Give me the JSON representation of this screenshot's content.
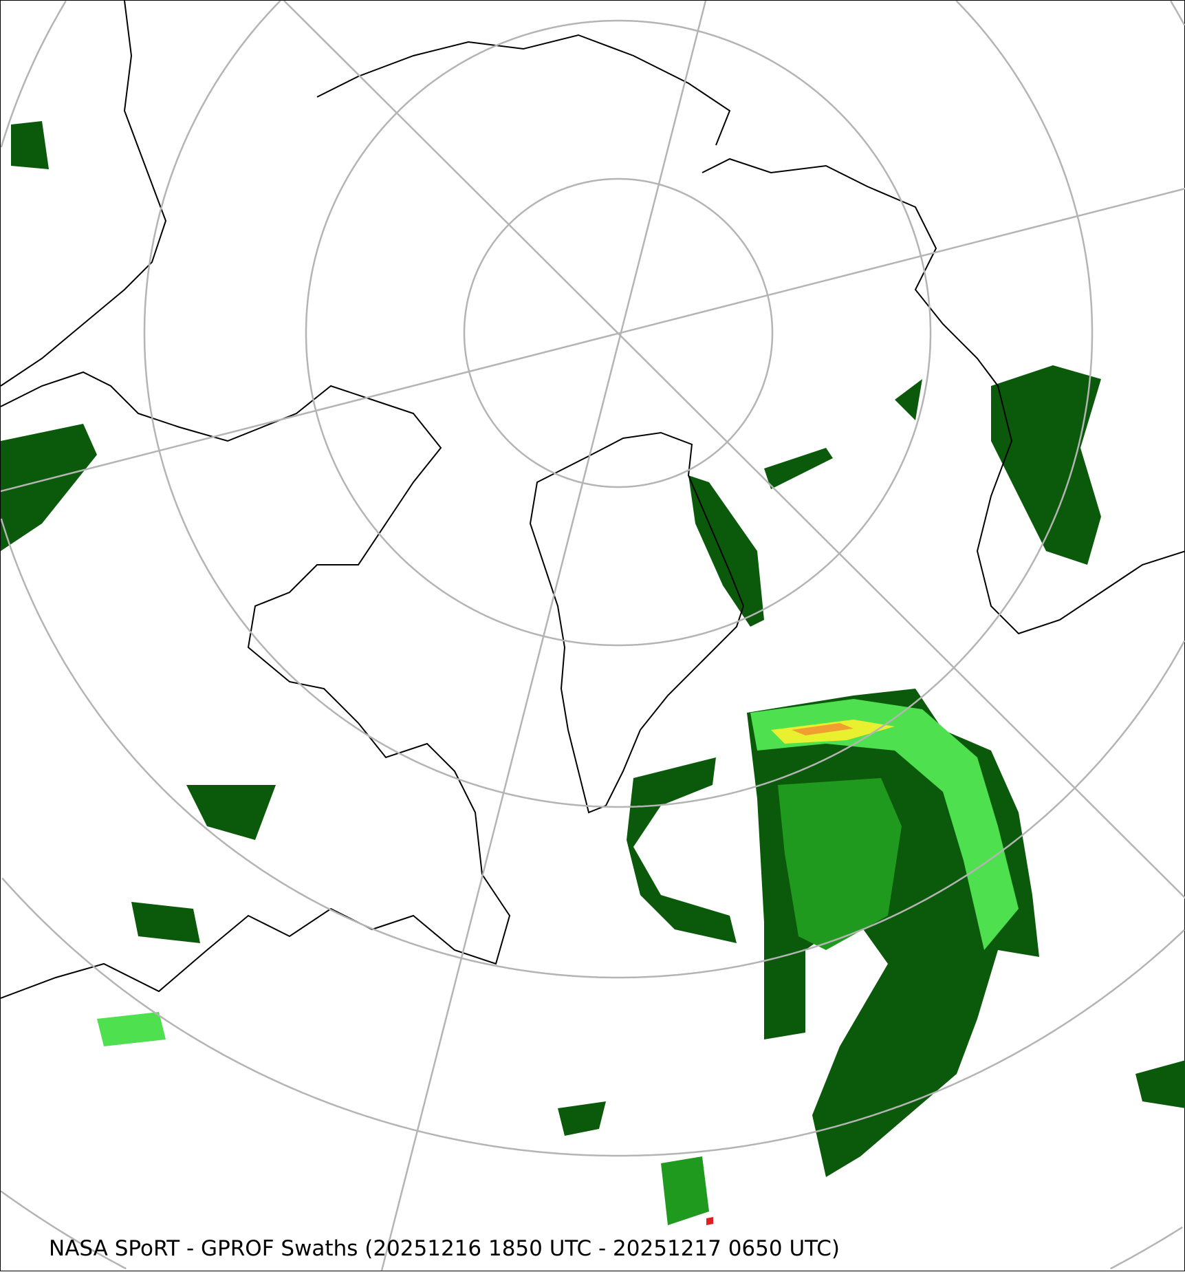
{
  "caption": "NASA SPoRT - GPROF Swaths (20251216 1850 UTC - 20251217 0650 UTC)",
  "projection": "north-polar-stereographic",
  "colors": {
    "grid": "#b4b4b4",
    "coastline": "#000000",
    "precip_dark_green": "#0b5a0b",
    "precip_green": "#1f9a1f",
    "precip_light_green": "#4fe04f",
    "precip_yellow": "#e8f030",
    "precip_orange": "#f0a030",
    "precip_red": "#e02020"
  }
}
